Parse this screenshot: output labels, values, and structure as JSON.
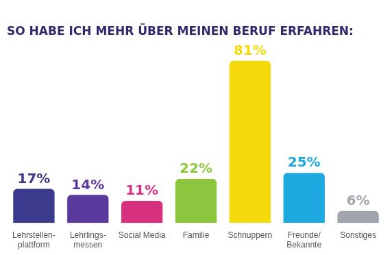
{
  "chart_data": {
    "type": "bar",
    "title": "SO HABE ICH MEHR ÜBER MEINEN BERUF ERFAHREN:",
    "categories": [
      "Lehrstellen-plattform",
      "Lehrlings-messen",
      "Social Media",
      "Familie",
      "Schnuppern",
      "Freunde/Bekannte",
      "Sonstiges"
    ],
    "values": [
      17,
      14,
      11,
      22,
      81,
      25,
      6
    ],
    "value_labels": [
      "17%",
      "14%",
      "11%",
      "22%",
      "81%",
      "25%",
      "6%"
    ],
    "colors": [
      "#3b3a8c",
      "#5b3a9e",
      "#d6307f",
      "#8cc63f",
      "#f5d90a",
      "#1ea8e0",
      "#a0a4ad"
    ],
    "data_labels": true,
    "tick_labels": "x",
    "grid": false
  }
}
